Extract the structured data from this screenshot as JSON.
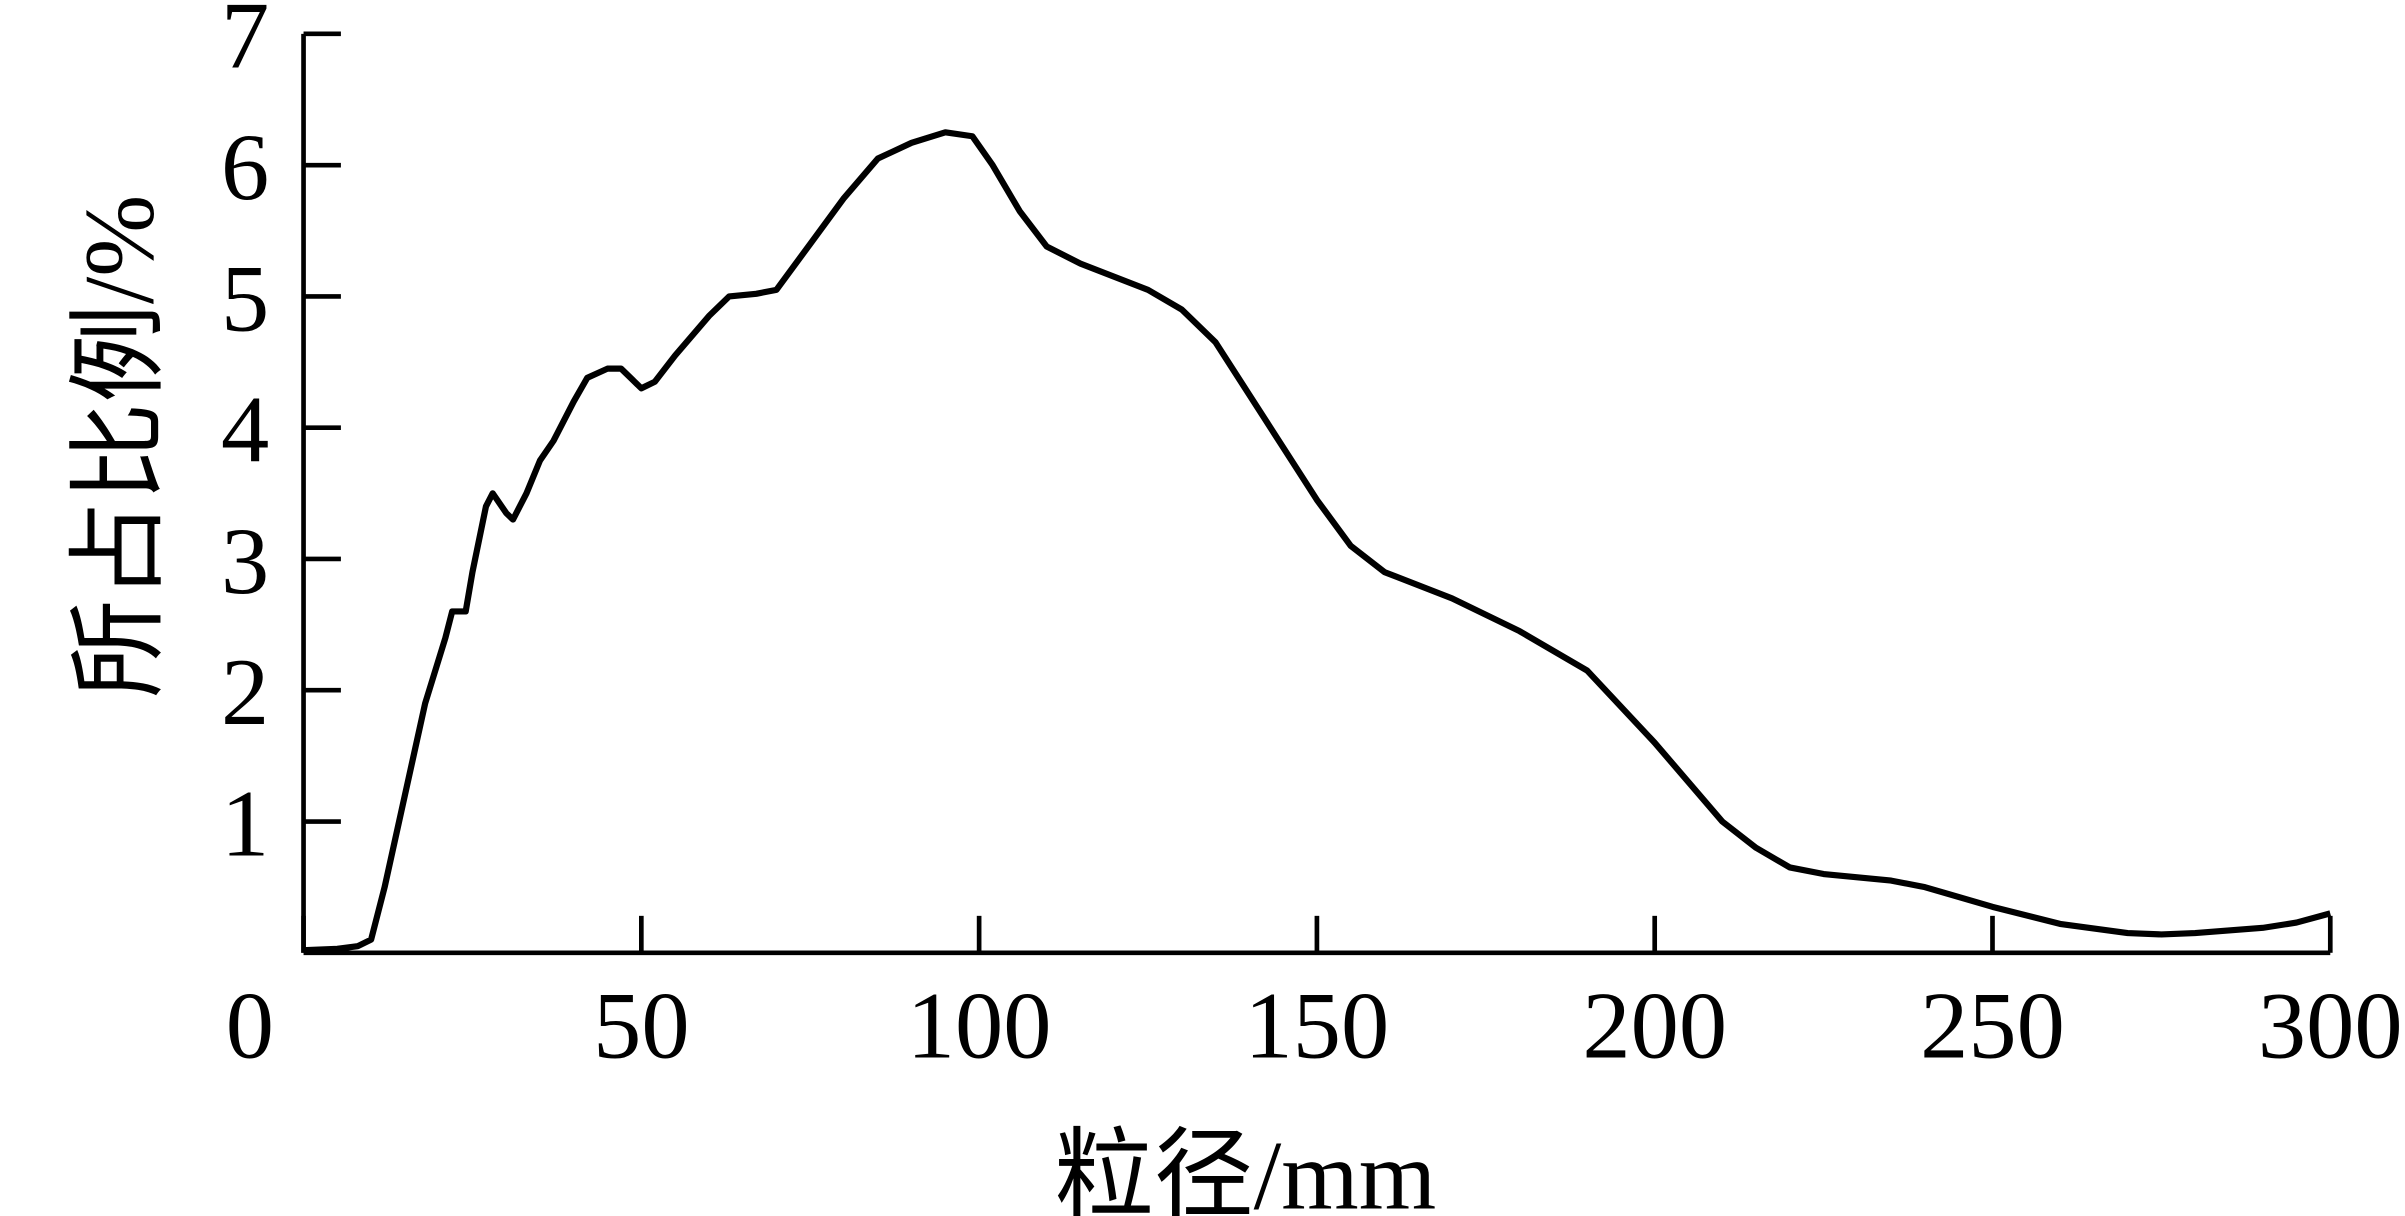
{
  "chart_data": {
    "type": "line",
    "xlabel": "粒径/mm",
    "ylabel": "所占比例/%",
    "x": [
      0,
      5,
      8,
      10,
      12,
      15,
      18,
      21,
      22,
      24,
      25,
      27,
      28,
      30,
      31,
      33,
      35,
      37,
      40,
      42,
      45,
      47,
      50,
      52,
      55,
      60,
      63,
      67,
      70,
      75,
      80,
      85,
      90,
      95,
      99,
      102,
      106,
      110,
      115,
      120,
      125,
      130,
      135,
      140,
      145,
      150,
      155,
      160,
      170,
      180,
      190,
      200,
      210,
      215,
      220,
      225,
      235,
      240,
      250,
      260,
      270,
      275,
      280,
      290,
      295,
      300
    ],
    "series": [
      {
        "color": "#000000",
        "values": [
          0.02,
          0.03,
          0.05,
          0.1,
          0.5,
          1.2,
          1.9,
          2.4,
          2.6,
          2.6,
          2.9,
          3.4,
          3.5,
          3.35,
          3.3,
          3.5,
          3.75,
          3.9,
          4.2,
          4.38,
          4.45,
          4.45,
          4.3,
          4.35,
          4.55,
          4.85,
          5.0,
          5.02,
          5.05,
          5.4,
          5.75,
          6.05,
          6.17,
          6.25,
          6.22,
          6.0,
          5.65,
          5.38,
          5.25,
          5.15,
          5.05,
          4.9,
          4.65,
          4.25,
          3.85,
          3.45,
          3.1,
          2.9,
          2.7,
          2.45,
          2.15,
          1.6,
          1.0,
          0.8,
          0.65,
          0.6,
          0.55,
          0.5,
          0.35,
          0.22,
          0.15,
          0.14,
          0.15,
          0.19,
          0.23,
          0.3
        ]
      }
    ],
    "xlim": [
      0,
      300
    ],
    "xticks": [
      0,
      50,
      100,
      150,
      200,
      250,
      300
    ],
    "ylim": [
      0,
      7
    ],
    "yticks": [
      1,
      2,
      3,
      4,
      5,
      6,
      7
    ]
  }
}
